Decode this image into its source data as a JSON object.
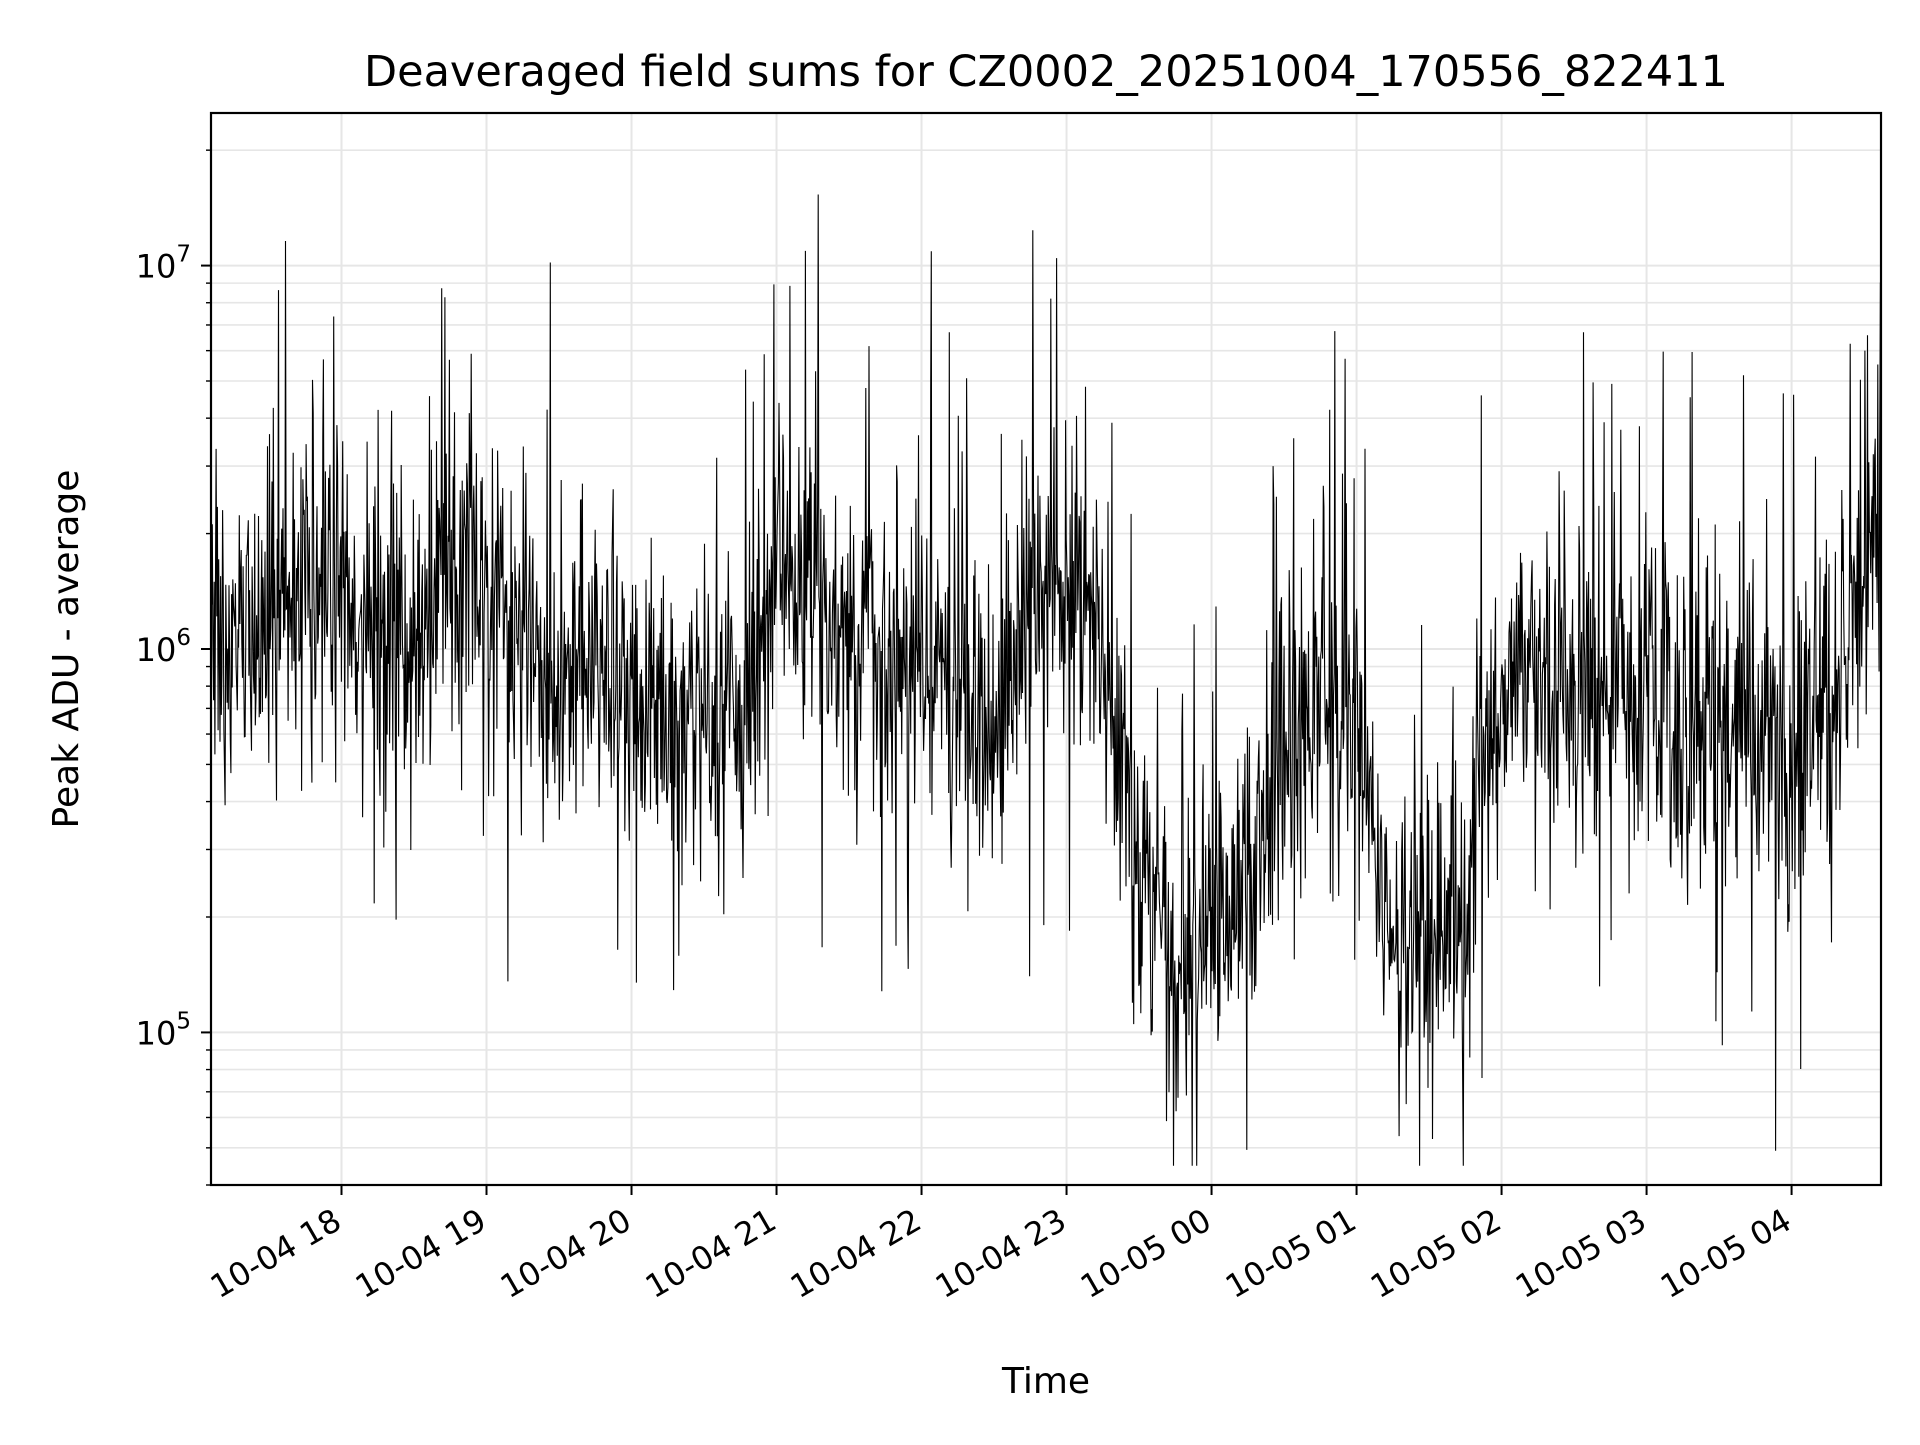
{
  "chart_data": {
    "type": "line",
    "title": "Deaveraged field sums for CZ0002_20251004_170556_822411",
    "xlabel": "Time",
    "ylabel": "Peak ADU - average",
    "y_scale": "log",
    "ylim": [
      40000,
      25000000
    ],
    "xlim": [
      "2025-10-04 17:06",
      "2025-10-05 04:37"
    ],
    "grid": true,
    "line_color": "#000000",
    "grid_color": "#e6e6e6",
    "x_ticks": [
      "10-04 18",
      "10-04 19",
      "10-04 20",
      "10-04 21",
      "10-04 22",
      "10-04 23",
      "10-05 00",
      "10-05 01",
      "10-05 02",
      "10-05 03",
      "10-05 04"
    ],
    "y_ticks": [
      {
        "value": 100000,
        "base": "10",
        "exp": "5"
      },
      {
        "value": 1000000,
        "base": "10",
        "exp": "6"
      },
      {
        "value": 10000000,
        "base": "10",
        "exp": "7"
      }
    ],
    "series": [
      {
        "color": "#000000",
        "points": [
          [
            "2025-10-04 17:06",
            1300000
          ],
          [
            "2025-10-04 17:15",
            1000000
          ],
          [
            "2025-10-04 17:30",
            1200000
          ],
          [
            "2025-10-04 17:45",
            1500000
          ],
          [
            "2025-10-04 18:00",
            1400000
          ],
          [
            "2025-10-04 18:15",
            1150000
          ],
          [
            "2025-10-04 18:30",
            1100000
          ],
          [
            "2025-10-04 18:45",
            1400000
          ],
          [
            "2025-10-04 19:00",
            1300000
          ],
          [
            "2025-10-04 19:15",
            1000000
          ],
          [
            "2025-10-04 19:30",
            900000
          ],
          [
            "2025-10-04 19:45",
            850000
          ],
          [
            "2025-10-04 20:00",
            800000
          ],
          [
            "2025-10-04 20:15",
            750000
          ],
          [
            "2025-10-04 20:30",
            650000
          ],
          [
            "2025-10-04 20:45",
            600000
          ],
          [
            "2025-10-04 21:00",
            1800000
          ],
          [
            "2025-10-04 21:15",
            1400000
          ],
          [
            "2025-10-04 21:30",
            1000000
          ],
          [
            "2025-10-04 21:45",
            900000
          ],
          [
            "2025-10-04 22:00",
            900000
          ],
          [
            "2025-10-04 22:15",
            800000
          ],
          [
            "2025-10-04 22:30",
            600000
          ],
          [
            "2025-10-04 22:45",
            1400000
          ],
          [
            "2025-10-04 23:00",
            1500000
          ],
          [
            "2025-10-04 23:15",
            1100000
          ],
          [
            "2025-10-04 23:30",
            250000
          ],
          [
            "2025-10-04 23:45",
            180000
          ],
          [
            "2025-10-05 00:00",
            160000
          ],
          [
            "2025-10-05 00:15",
            250000
          ],
          [
            "2025-10-05 00:30",
            500000
          ],
          [
            "2025-10-05 00:45",
            900000
          ],
          [
            "2025-10-05 01:00",
            500000
          ],
          [
            "2025-10-05 01:15",
            180000
          ],
          [
            "2025-10-05 01:30",
            160000
          ],
          [
            "2025-10-05 01:45",
            200000
          ],
          [
            "2025-10-05 02:00",
            800000
          ],
          [
            "2025-10-05 02:15",
            900000
          ],
          [
            "2025-10-05 02:30",
            700000
          ],
          [
            "2025-10-05 02:45",
            800000
          ],
          [
            "2025-10-05 03:00",
            700000
          ],
          [
            "2025-10-05 03:15",
            650000
          ],
          [
            "2025-10-05 03:30",
            600000
          ],
          [
            "2025-10-05 03:45",
            600000
          ],
          [
            "2025-10-05 04:00",
            550000
          ],
          [
            "2025-10-05 04:15",
            700000
          ],
          [
            "2025-10-05 04:30",
            1400000
          ],
          [
            "2025-10-05 04:37",
            2500000
          ]
        ]
      }
    ]
  }
}
